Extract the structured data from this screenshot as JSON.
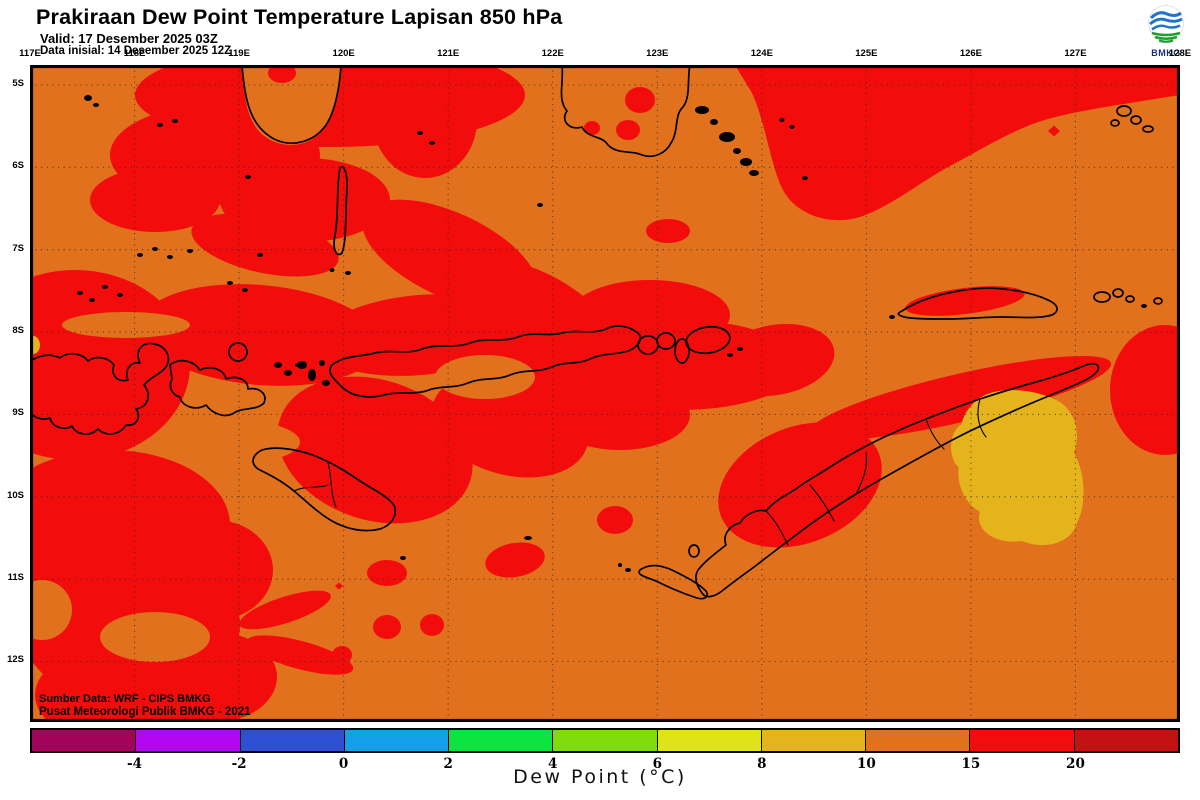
{
  "header": {
    "title": "Prakiraan Dew Point Temperature Lapisan 850 hPa",
    "valid": "Valid: 17 Desember 2025 03Z",
    "init": "Data inisial: 14 Desember 2025 12Z",
    "logo": "BMKG"
  },
  "map": {
    "lon_labels": [
      "117E",
      "118E",
      "119E",
      "120E",
      "121E",
      "122E",
      "123E",
      "124E",
      "125E",
      "126E",
      "127E",
      "128E"
    ],
    "lat_labels": [
      "5S",
      "6S",
      "7S",
      "8S",
      "9S",
      "10S",
      "11S",
      "12S"
    ],
    "credit_line1": "Sumber Data: WRF - CIPS BMKG",
    "credit_line2": "Pusat Meteorologi Publik BMKG - 2021",
    "colors": {
      "orange": "#E2711D",
      "red": "#F30C0C",
      "gold": "#E5B41C",
      "coast": "#000000"
    }
  },
  "colorbar": {
    "title": "Dew Point (°C)",
    "tick_labels": [
      "-4",
      "-2",
      "0",
      "2",
      "4",
      "6",
      "8",
      "10",
      "15",
      "20"
    ],
    "segment_colors": [
      "#A2045A",
      "#B108F0",
      "#2E4FD2",
      "#12A0E8",
      "#0BE33F",
      "#7EDC0C",
      "#DFE318",
      "#E5B41C",
      "#E2711D",
      "#F30C0C",
      "#C41212"
    ]
  },
  "chart_data": {
    "type": "heatmap",
    "title": "Prakiraan Dew Point Temperature Lapisan 850 hPa",
    "variable": "Dew Point (°C)",
    "region": {
      "lon_range": [
        "117E",
        "128E"
      ],
      "lat_range": [
        "5S",
        "12S"
      ]
    },
    "scale_breaks": [
      -4,
      -2,
      0,
      2,
      4,
      6,
      8,
      10,
      15,
      20
    ],
    "legend_position": "bottom",
    "dominant_values": "Field is mostly 10-15 °C (orange) and 15-20 °C (red); one 8-10 °C (gold) patch near 126.5E 10S southeast of Timor"
  }
}
